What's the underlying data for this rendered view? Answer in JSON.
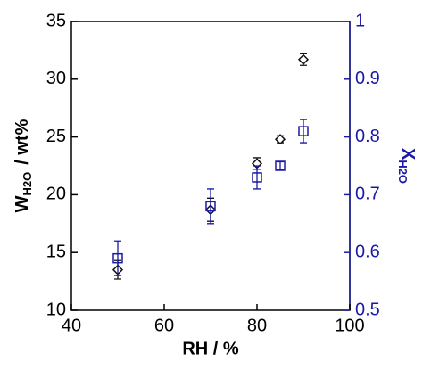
{
  "chart_data": {
    "type": "scatter",
    "x_label": "RH / %",
    "y_label": {
      "main": "W",
      "sub": "H2O",
      "rest": "/ wt%"
    },
    "y2_label": {
      "main": "X",
      "sub": "H2O"
    },
    "xlim": [
      40,
      100
    ],
    "xticks": [
      40,
      60,
      80,
      100
    ],
    "ylim": [
      10,
      35
    ],
    "yticks": [
      10,
      15,
      20,
      25,
      30,
      35
    ],
    "y2lim": [
      0.5,
      1
    ],
    "y2ticks": [
      0.5,
      0.6,
      0.7,
      0.8,
      0.9,
      1
    ],
    "y2color": "#1a1aa6",
    "series": [
      {
        "marker": "diamond",
        "color": "#111111",
        "x": [
          50,
          70,
          80,
          85,
          90
        ],
        "values": [
          13.5,
          18.7,
          22.7,
          24.8,
          31.7
        ],
        "errors": [
          0.8,
          1.0,
          0.5,
          0.3,
          0.5
        ]
      },
      {
        "marker": "square",
        "color": "#1a1aa6",
        "axis": "y2",
        "x": [
          50,
          70,
          80,
          85,
          90
        ],
        "values": [
          0.59,
          0.68,
          0.73,
          0.75,
          0.81
        ],
        "errors": [
          0.03,
          0.03,
          0.02,
          0.007,
          0.02
        ]
      }
    ]
  }
}
